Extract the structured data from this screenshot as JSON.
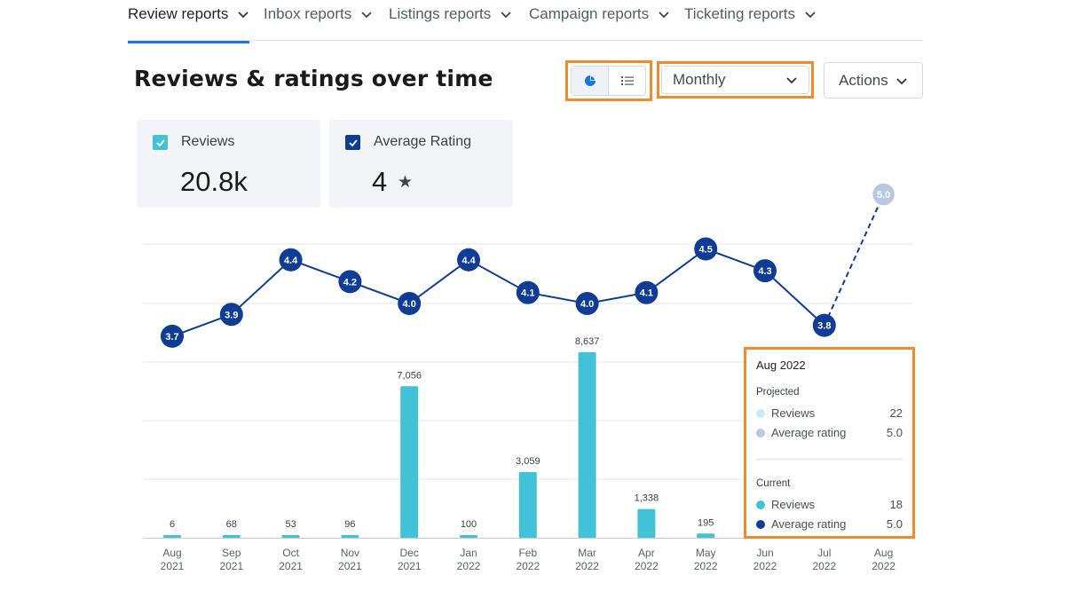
{
  "tabs": [
    {
      "label": "Review reports",
      "active": true
    },
    {
      "label": "Inbox reports",
      "active": false
    },
    {
      "label": "Listings reports",
      "active": false
    },
    {
      "label": "Campaign reports",
      "active": false
    },
    {
      "label": "Ticketing reports",
      "active": false
    }
  ],
  "title": "Reviews & ratings over time",
  "controls": {
    "view_toggle": [
      "chart-icon",
      "list-icon"
    ],
    "period": "Monthly",
    "actions": "Actions"
  },
  "metrics": [
    {
      "label": "Reviews",
      "value": "20.8k",
      "checked": true,
      "color": "#42c2d6"
    },
    {
      "label": "Average Rating",
      "value": "4",
      "suffix": "★",
      "checked": true,
      "color": "#0f3d96"
    }
  ],
  "colors": {
    "accent": "#1a73e8",
    "highlight": "#f28a2a",
    "reviews_bar": "#42c2d6",
    "rating_line": "#0f3d96",
    "projected": "#b8c8e3"
  },
  "chart_data": {
    "type": "bar",
    "categories": [
      [
        "Aug",
        "2021"
      ],
      [
        "Sep",
        "2021"
      ],
      [
        "Oct",
        "2021"
      ],
      [
        "Nov",
        "2021"
      ],
      [
        "Dec",
        "2021"
      ],
      [
        "Jan",
        "2022"
      ],
      [
        "Feb",
        "2022"
      ],
      [
        "Mar",
        "2022"
      ],
      [
        "Apr",
        "2022"
      ],
      [
        "May",
        "2022"
      ],
      [
        "Jun",
        "2022"
      ],
      [
        "Jul",
        "2022"
      ],
      [
        "Aug",
        "2022"
      ]
    ],
    "series": [
      {
        "name": "Reviews",
        "type": "bar",
        "values": [
          6,
          68,
          53,
          96,
          7056,
          100,
          3059,
          8637,
          1338,
          195,
          null,
          null,
          null
        ],
        "labels": [
          "6",
          "68",
          "53",
          "96",
          "7,056",
          "100",
          "3,059",
          "8,637",
          "1,338",
          "195",
          "",
          "",
          ""
        ]
      },
      {
        "name": "Average Rating",
        "type": "line",
        "values": [
          3.7,
          3.9,
          4.4,
          4.2,
          4.0,
          4.4,
          4.1,
          4.0,
          4.1,
          4.5,
          4.3,
          3.8,
          5.0
        ],
        "labels": [
          "3.7",
          "3.9",
          "4.4",
          "4.2",
          "4.0",
          "4.4",
          "4.1",
          "4.0",
          "4.1",
          "4.5",
          "4.3",
          "3.8",
          "5.0"
        ],
        "projected_from_index": 12
      }
    ],
    "bars_ylim": [
      0,
      10000
    ],
    "line_ylim": [
      3.0,
      5.0
    ],
    "grid": true
  },
  "tooltip": {
    "title": "Aug 2022",
    "projected_label": "Projected",
    "projected": [
      {
        "label": "Reviews",
        "value": "22",
        "color": "#c9ecf3"
      },
      {
        "label": "Average rating",
        "value": "5.0",
        "color": "#b8c8e3"
      }
    ],
    "current_label": "Current",
    "current": [
      {
        "label": "Reviews",
        "value": "18",
        "color": "#42c2d6"
      },
      {
        "label": "Average rating",
        "value": "5.0",
        "color": "#0f3d96"
      }
    ]
  }
}
